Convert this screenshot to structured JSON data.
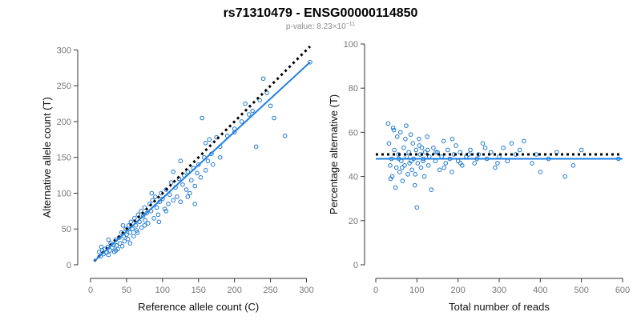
{
  "title": "rs71310479 - ENSG00000114850",
  "subtitle_prefix": "p-value: 8.23×10",
  "subtitle_exp": "−11",
  "chart_data": [
    {
      "type": "scatter",
      "xlabel": "Reference allele count (C)",
      "ylabel": "Alternative allele count (T)",
      "xlim": [
        0,
        305
      ],
      "ylim": [
        0,
        305
      ],
      "xticks": [
        0,
        50,
        100,
        150,
        200,
        250,
        300
      ],
      "yticks": [
        0,
        50,
        100,
        150,
        200,
        250,
        300
      ],
      "fit_line": [
        [
          5,
          5
        ],
        [
          305,
          283
        ]
      ],
      "reference_line": [
        [
          5,
          5
        ],
        [
          305,
          305
        ]
      ],
      "points": [
        [
          12,
          18
        ],
        [
          14,
          12
        ],
        [
          16,
          20
        ],
        [
          18,
          15
        ],
        [
          20,
          22
        ],
        [
          22,
          17
        ],
        [
          24,
          25
        ],
        [
          25,
          14
        ],
        [
          27,
          20
        ],
        [
          28,
          30
        ],
        [
          30,
          24
        ],
        [
          32,
          28
        ],
        [
          33,
          18
        ],
        [
          35,
          35
        ],
        [
          36,
          27
        ],
        [
          38,
          22
        ],
        [
          40,
          38
        ],
        [
          41,
          30
        ],
        [
          43,
          45
        ],
        [
          44,
          26
        ],
        [
          46,
          40
        ],
        [
          47,
          33
        ],
        [
          49,
          50
        ],
        [
          50,
          42
        ],
        [
          52,
          36
        ],
        [
          53,
          55
        ],
        [
          55,
          45
        ],
        [
          56,
          60
        ],
        [
          58,
          50
        ],
        [
          60,
          40
        ],
        [
          61,
          65
        ],
        [
          63,
          55
        ],
        [
          64,
          48
        ],
        [
          66,
          70
        ],
        [
          68,
          60
        ],
        [
          70,
          75
        ],
        [
          71,
          52
        ],
        [
          73,
          68
        ],
        [
          75,
          80
        ],
        [
          76,
          62
        ],
        [
          78,
          72
        ],
        [
          80,
          58
        ],
        [
          82,
          85
        ],
        [
          84,
          75
        ],
        [
          86,
          90
        ],
        [
          88,
          65
        ],
        [
          90,
          95
        ],
        [
          92,
          80
        ],
        [
          94,
          70
        ],
        [
          96,
          88
        ],
        [
          98,
          100
        ],
        [
          100,
          92
        ],
        [
          103,
          78
        ],
        [
          105,
          105
        ],
        [
          108,
          85
        ],
        [
          110,
          98
        ],
        [
          112,
          115
        ],
        [
          115,
          90
        ],
        [
          118,
          108
        ],
        [
          120,
          95
        ],
        [
          123,
          120
        ],
        [
          125,
          88
        ],
        [
          128,
          112
        ],
        [
          130,
          125
        ],
        [
          133,
          105
        ],
        [
          135,
          130
        ],
        [
          138,
          100
        ],
        [
          140,
          118
        ],
        [
          143,
          135
        ],
        [
          145,
          110
        ],
        [
          148,
          128
        ],
        [
          150,
          140
        ],
        [
          153,
          122
        ],
        [
          155,
          205
        ],
        [
          158,
          150
        ],
        [
          160,
          132
        ],
        [
          163,
          145
        ],
        [
          165,
          175
        ],
        [
          168,
          155
        ],
        [
          170,
          140
        ],
        [
          175,
          178
        ],
        [
          180,
          165
        ],
        [
          190,
          180
        ],
        [
          200,
          190
        ],
        [
          210,
          200
        ],
        [
          215,
          225
        ],
        [
          220,
          210
        ],
        [
          225,
          215
        ],
        [
          230,
          165
        ],
        [
          235,
          230
        ],
        [
          240,
          260
        ],
        [
          245,
          240
        ],
        [
          250,
          222
        ],
        [
          255,
          205
        ],
        [
          270,
          180
        ],
        [
          305,
          283
        ],
        [
          15,
          25
        ],
        [
          25,
          35
        ],
        [
          35,
          20
        ],
        [
          45,
          55
        ],
        [
          55,
          30
        ],
        [
          65,
          45
        ],
        [
          75,
          55
        ],
        [
          85,
          100
        ],
        [
          95,
          60
        ],
        [
          105,
          75
        ],
        [
          115,
          130
        ],
        [
          125,
          145
        ],
        [
          135,
          95
        ],
        [
          145,
          85
        ],
        [
          160,
          170
        ],
        [
          180,
          150
        ],
        [
          200,
          185
        ]
      ]
    },
    {
      "type": "scatter",
      "xlabel": "Total number of reads",
      "ylabel": "Percentage alternative (T)",
      "xlim": [
        0,
        600
      ],
      "ylim": [
        0,
        100
      ],
      "xticks": [
        0,
        100,
        200,
        300,
        400,
        500,
        600
      ],
      "yticks": [
        0,
        20,
        40,
        60,
        80,
        100
      ],
      "fit_y": 48,
      "reference_y": 50,
      "points": [
        [
          30,
          64
        ],
        [
          32,
          55
        ],
        [
          35,
          45
        ],
        [
          38,
          48
        ],
        [
          40,
          40
        ],
        [
          42,
          62
        ],
        [
          45,
          52
        ],
        [
          48,
          35
        ],
        [
          50,
          44
        ],
        [
          52,
          58
        ],
        [
          55,
          50
        ],
        [
          58,
          42
        ],
        [
          60,
          60
        ],
        [
          62,
          47
        ],
        [
          65,
          38
        ],
        [
          68,
          53
        ],
        [
          70,
          45
        ],
        [
          72,
          57
        ],
        [
          75,
          49
        ],
        [
          78,
          41
        ],
        [
          80,
          51
        ],
        [
          82,
          46
        ],
        [
          85,
          59
        ],
        [
          88,
          43
        ],
        [
          90,
          55
        ],
        [
          92,
          48
        ],
        [
          95,
          36
        ],
        [
          98,
          52
        ],
        [
          100,
          26
        ],
        [
          102,
          46
        ],
        [
          105,
          57
        ],
        [
          108,
          50
        ],
        [
          110,
          44
        ],
        [
          112,
          53
        ],
        [
          115,
          47
        ],
        [
          118,
          40
        ],
        [
          120,
          51
        ],
        [
          125,
          58
        ],
        [
          128,
          45
        ],
        [
          130,
          49
        ],
        [
          135,
          34
        ],
        [
          140,
          53
        ],
        [
          145,
          47
        ],
        [
          150,
          51
        ],
        [
          155,
          43
        ],
        [
          160,
          49
        ],
        [
          165,
          56
        ],
        [
          170,
          46
        ],
        [
          175,
          52
        ],
        [
          180,
          48
        ],
        [
          185,
          42
        ],
        [
          190,
          50
        ],
        [
          195,
          54
        ],
        [
          200,
          47
        ],
        [
          205,
          51
        ],
        [
          210,
          45
        ],
        [
          220,
          49
        ],
        [
          230,
          52
        ],
        [
          240,
          46
        ],
        [
          250,
          50
        ],
        [
          260,
          55
        ],
        [
          270,
          48
        ],
        [
          280,
          51
        ],
        [
          290,
          44
        ],
        [
          300,
          49
        ],
        [
          310,
          53
        ],
        [
          320,
          47
        ],
        [
          330,
          55
        ],
        [
          340,
          50
        ],
        [
          350,
          52
        ],
        [
          360,
          56
        ],
        [
          380,
          46
        ],
        [
          390,
          50
        ],
        [
          400,
          42
        ],
        [
          420,
          48
        ],
        [
          440,
          51
        ],
        [
          460,
          40
        ],
        [
          480,
          45
        ],
        [
          500,
          52
        ],
        [
          590,
          48
        ],
        [
          36,
          39
        ],
        [
          44,
          61
        ],
        [
          56,
          48
        ],
        [
          64,
          44
        ],
        [
          74,
          63
        ],
        [
          86,
          47
        ],
        [
          96,
          41
        ],
        [
          106,
          54
        ],
        [
          116,
          48
        ],
        [
          126,
          52
        ],
        [
          146,
          51
        ],
        [
          166,
          44
        ],
        [
          186,
          57
        ],
        [
          206,
          46
        ],
        [
          226,
          50
        ],
        [
          246,
          48
        ],
        [
          266,
          53
        ],
        [
          296,
          46
        ]
      ]
    }
  ]
}
